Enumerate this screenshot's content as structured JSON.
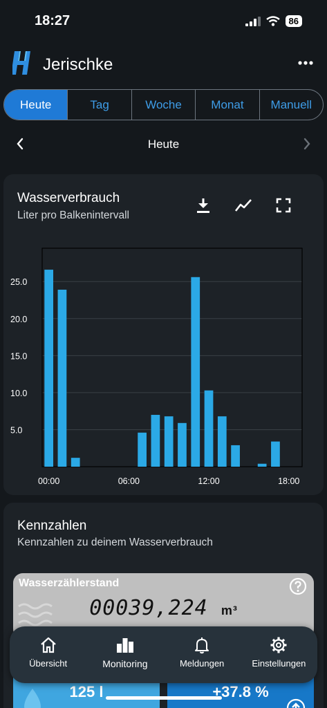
{
  "status": {
    "time": "18:27",
    "battery": "86"
  },
  "app": {
    "title": "Jerischke"
  },
  "tabs": [
    "Heute",
    "Tag",
    "Woche",
    "Monat",
    "Manuell"
  ],
  "date_nav": {
    "label": "Heute"
  },
  "chart_card": {
    "title": "Wasserverbrauch",
    "subtitle": "Liter pro Balkenintervall"
  },
  "chart_data": {
    "type": "bar",
    "xlabel": "",
    "ylabel": "",
    "x_ticks": [
      "00:00",
      "06:00",
      "12:00",
      "18:00"
    ],
    "y_ticks": [
      "5.0",
      "10.0",
      "15.0",
      "20.0",
      "25.0"
    ],
    "xlim": [
      -0.5,
      19
    ],
    "ylim": [
      0,
      29.5
    ],
    "grid": true,
    "bar_color": "#2ba9e6",
    "x": [
      0,
      1,
      2,
      3,
      4,
      5,
      6,
      7,
      8,
      9,
      10,
      11,
      12,
      13,
      14,
      15,
      16,
      17
    ],
    "values": [
      26.6,
      23.9,
      1.2,
      0,
      0,
      0,
      0,
      4.6,
      7.0,
      6.8,
      5.9,
      25.6,
      10.3,
      6.8,
      2.9,
      0,
      0.4,
      3.4
    ]
  },
  "kpi": {
    "title": "Kennzahlen",
    "subtitle": "Kennzahlen zu deinem Wasserverbrauch"
  },
  "meter": {
    "label": "Wasserzählerstand",
    "value": "00039,224",
    "unit": "m³"
  },
  "tiles": {
    "left_value": "125 l",
    "right_value": "+37.8 %"
  },
  "bottom_nav": [
    {
      "label": "Übersicht",
      "icon": "home-icon"
    },
    {
      "label": "Monitoring",
      "icon": "bar-chart-icon"
    },
    {
      "label": "Meldungen",
      "icon": "bell-icon"
    },
    {
      "label": "Einstellungen",
      "icon": "gear-icon"
    }
  ],
  "colors": {
    "accent": "#1f7ad6",
    "background": "#14181c",
    "card": "#1d2227",
    "bar": "#2ba9e6"
  }
}
